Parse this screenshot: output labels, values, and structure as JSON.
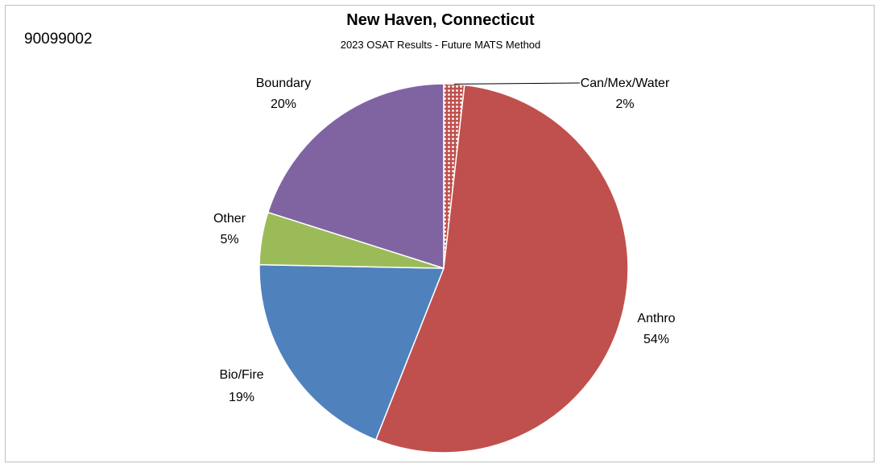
{
  "site_id": "90099002",
  "chart_data": {
    "type": "pie",
    "title": "New Haven, Connecticut",
    "subtitle": "2023 OSAT Results - Future MATS Method",
    "slices": [
      {
        "name": "Can/Mex/Water",
        "percent_label": "2%",
        "value": 1.8,
        "color": "#d99694",
        "pattern": "dotted"
      },
      {
        "name": "Anthro",
        "percent_label": "54%",
        "value": 54.2,
        "color": "#c0504d"
      },
      {
        "name": "Bio/Fire",
        "percent_label": "19%",
        "value": 19.3,
        "color": "#4f81bd"
      },
      {
        "name": "Other",
        "percent_label": "5%",
        "value": 4.6,
        "color": "#9bbb59"
      },
      {
        "name": "Boundary",
        "percent_label": "20%",
        "value": 20.1,
        "color": "#8064a2"
      }
    ]
  }
}
